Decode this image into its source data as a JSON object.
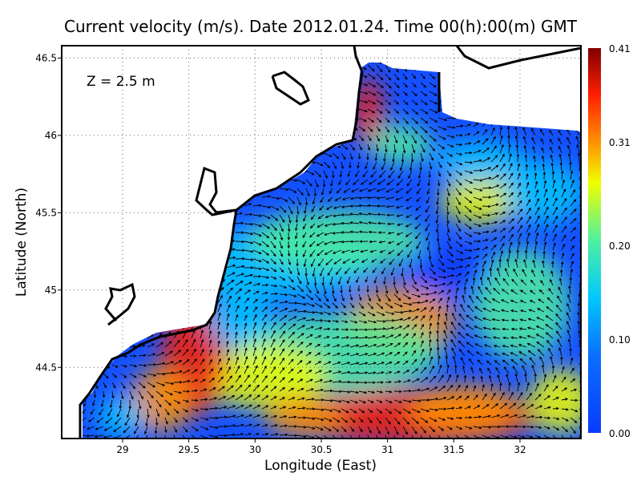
{
  "title": "Current velocity (m/s). Date 2012.01.24. Time 00(h):00(m) GMT",
  "depth_label": "Z = 2.5 m",
  "chart_data": {
    "type": "heatmap",
    "title": "Current velocity (m/s). Date 2012.01.24. Time 00(h):00(m) GMT",
    "xlabel": "Longitude (East)",
    "ylabel": "Latitude (North)",
    "xlim": [
      28.54,
      32.46
    ],
    "ylim": [
      44.04,
      46.58
    ],
    "x_ticks": [
      "29",
      "29.5",
      "30",
      "30.5",
      "31",
      "31.5",
      "32"
    ],
    "x_tick_values": [
      29,
      29.5,
      30,
      30.5,
      31,
      31.5,
      32
    ],
    "y_ticks": [
      "44.5",
      "45",
      "45.5",
      "46",
      "46.5"
    ],
    "y_tick_values": [
      44.5,
      45,
      45.5,
      46,
      46.5
    ],
    "grid": "dotted",
    "colorbar": {
      "range": [
        0.0,
        0.41
      ],
      "ticks": [
        "0.00",
        "0.10",
        "0.20",
        "0.31",
        "0.41"
      ],
      "tick_values": [
        0.0,
        0.1,
        0.2,
        0.31,
        0.41
      ],
      "colors": [
        "#0a3cff",
        "#00c8ff",
        "#50f0a0",
        "#f0ff00",
        "#ff9600",
        "#ff1e00",
        "#800000"
      ]
    },
    "annotation": "Z = 2.5 m",
    "land_color": "#ffffff",
    "vector_color": "#000000"
  }
}
